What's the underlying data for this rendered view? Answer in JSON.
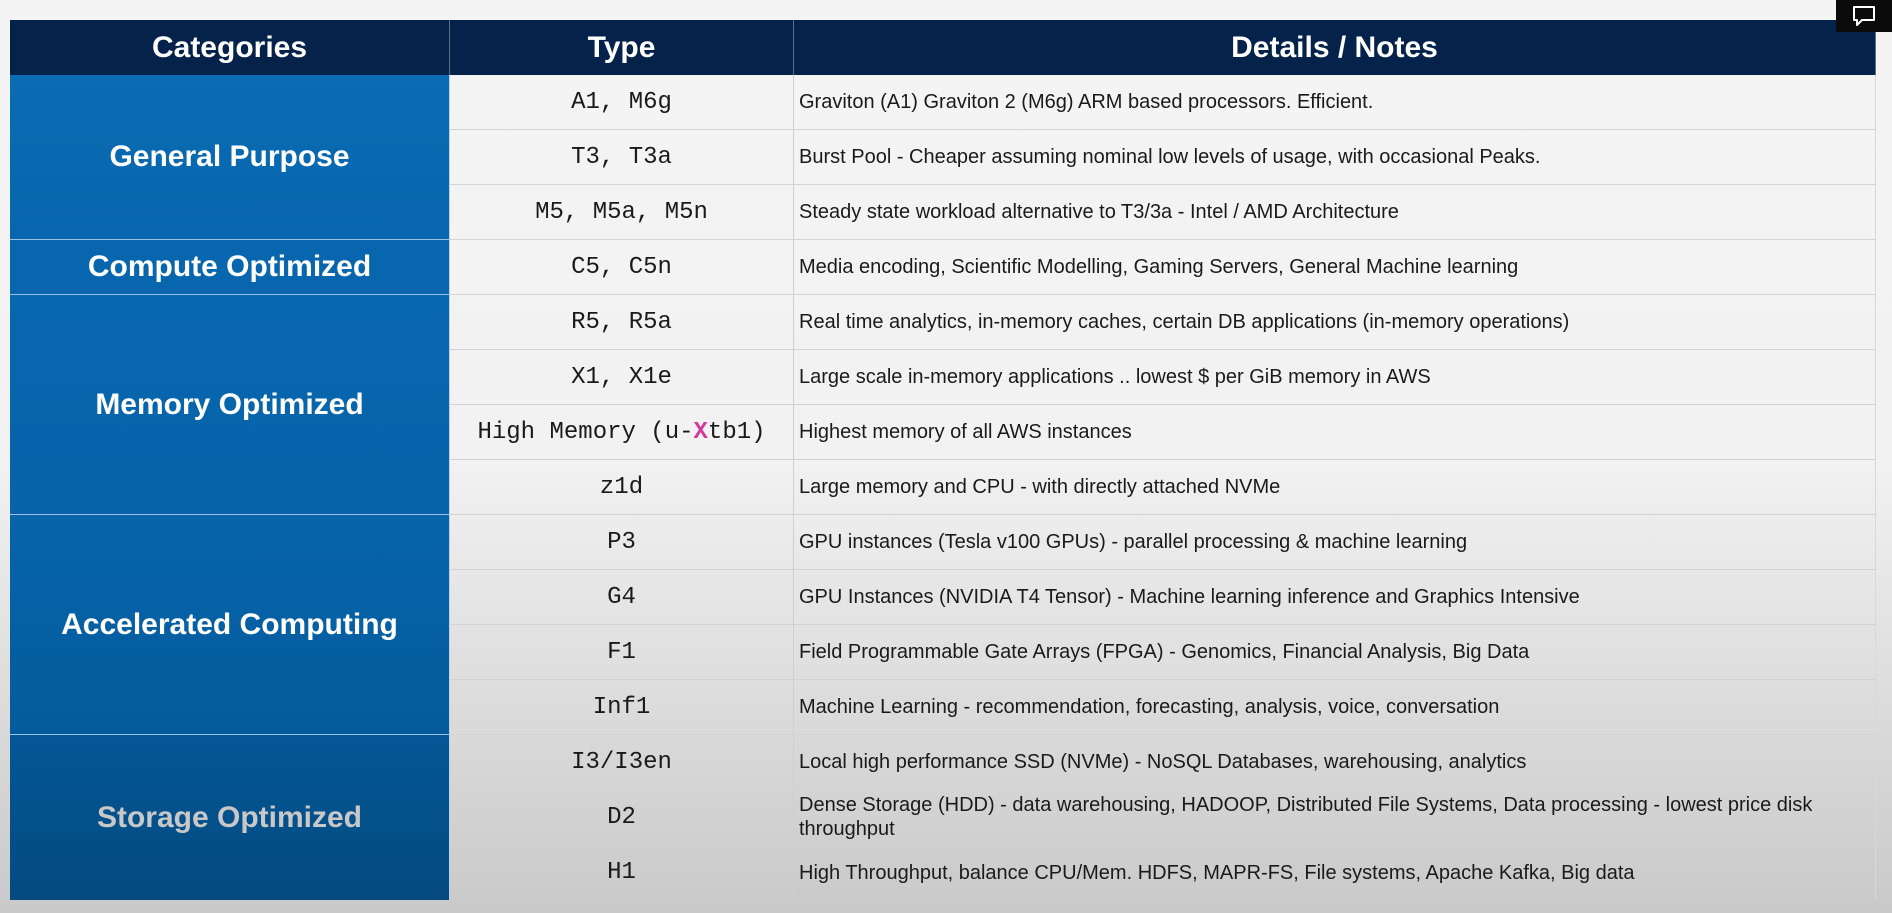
{
  "headers": {
    "categories": "Categories",
    "type": "Type",
    "details": "Details / Notes"
  },
  "categories": [
    {
      "label": "General Purpose"
    },
    {
      "label": "Compute Optimized"
    },
    {
      "label": "Memory Optimized"
    },
    {
      "label": "Accelerated Computing"
    },
    {
      "label": "Storage Optimized"
    }
  ],
  "rows": [
    {
      "type": "A1, M6g",
      "note": "Graviton (A1) Graviton 2 (M6g) ARM based processors. Efficient."
    },
    {
      "type": "T3, T3a",
      "note": "Burst Pool - Cheaper assuming nominal low levels of usage, with occasional Peaks."
    },
    {
      "type": "M5, M5a, M5n",
      "note": "Steady state workload alternative to T3/3a - Intel / AMD Architecture"
    },
    {
      "type": "C5, C5n",
      "note": "Media encoding, Scientific Modelling, Gaming Servers, General Machine learning"
    },
    {
      "type": "R5, R5a",
      "note": "Real time analytics, in-memory caches, certain DB applications (in-memory operations)"
    },
    {
      "type": "X1, X1e",
      "note": "Large scale in-memory applications .. lowest $ per GiB memory in AWS"
    },
    {
      "type_prefix": "High Memory (u-",
      "type_highlight": "X",
      "type_suffix": "tb1)",
      "note": "Highest memory of all AWS instances"
    },
    {
      "type": "z1d",
      "note": "Large memory and CPU - with directly attached NVMe"
    },
    {
      "type": "P3",
      "note": "GPU instances (Tesla v100 GPUs) - parallel processing & machine learning"
    },
    {
      "type": "G4",
      "note": "GPU Instances (NVIDIA T4 Tensor) - Machine learning inference and Graphics Intensive"
    },
    {
      "type": "F1",
      "note": "Field Programmable Gate Arrays (FPGA) - Genomics, Financial Analysis, Big Data"
    },
    {
      "type": "Inf1",
      "note": "Machine Learning - recommendation, forecasting, analysis, voice, conversation"
    },
    {
      "type": "I3/I3en",
      "note": "Local high performance SSD (NVMe) - NoSQL Databases, warehousing, analytics"
    },
    {
      "type": "D2",
      "note": "Dense Storage (HDD) - data warehousing, HADOOP, Distributed File Systems, Data processing - lowest price disk throughput"
    },
    {
      "type": "H1",
      "note": "High Throughput, balance CPU/Mem. HDFS, MAPR-FS, File systems, Apache Kafka, Big data"
    }
  ],
  "icons": {
    "corner": "comment-icon"
  }
}
